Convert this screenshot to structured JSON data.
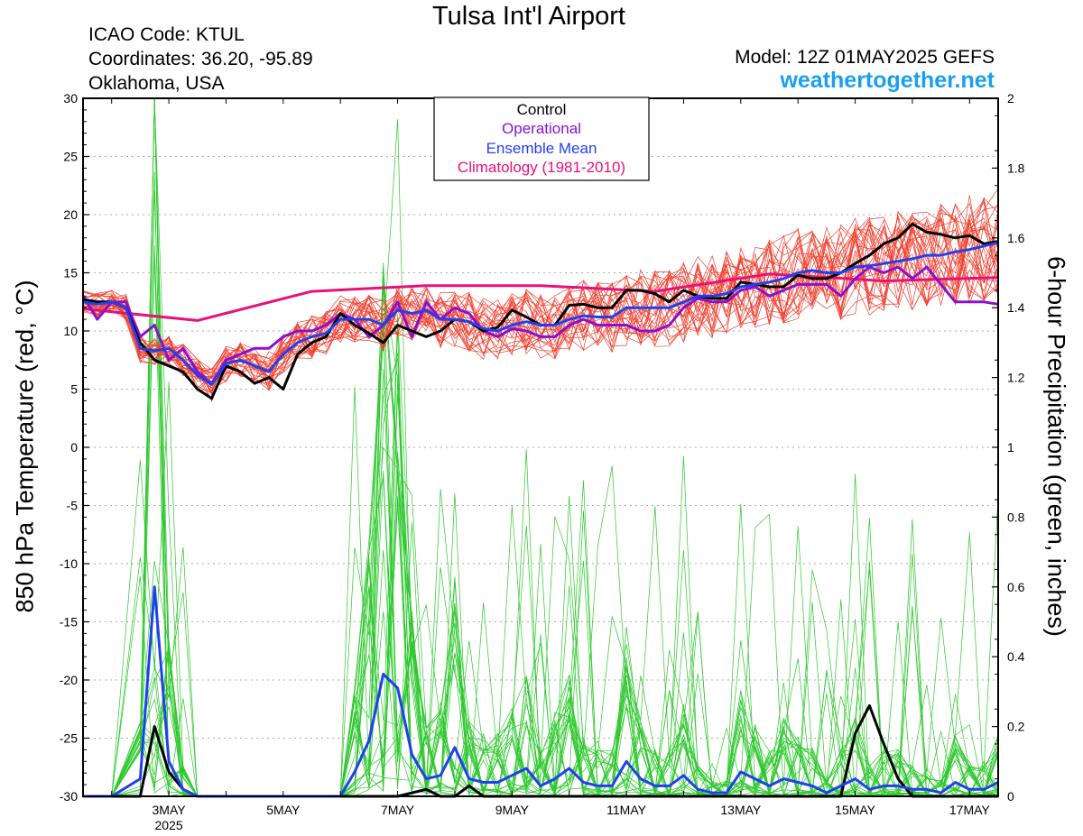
{
  "header": {
    "title": "Tulsa Int'l Airport",
    "icao": "ICAO Code: KTUL",
    "coordinates": "Coordinates: 36.20, -95.89",
    "location": "Oklahoma, USA",
    "model": "Model: 12Z 01MAY2025 GEFS",
    "website": "weathertogether.net"
  },
  "colors": {
    "members_temp": "#f04030",
    "members_precip": "#2ec82e",
    "control": "#000000",
    "operational": "#8a10d0",
    "ensemble_mean": "#2040f0",
    "climatology": "#e8107a",
    "website": "#1a9ff0"
  },
  "chart_data": {
    "type": "line",
    "ylabel": "850 hPa Temperature (red, °C)",
    "y2label": "6-hour Precipitation (green, inches)",
    "ylim": [
      -30,
      30
    ],
    "y2lim": [
      0,
      2
    ],
    "yticks": [
      "30",
      "25",
      "20",
      "15",
      "10",
      "5",
      "0",
      "-5",
      "-10",
      "-15",
      "-20",
      "-25",
      "-30"
    ],
    "y2ticks": [
      "2",
      "1.8",
      "1.6",
      "1.4",
      "1.2",
      "1",
      "0.8",
      "0.6",
      "0.4",
      "0.2",
      "0"
    ],
    "xlim_days": [
      1.5,
      17.5
    ],
    "xticks": [
      {
        "day": 3,
        "label": "3MAY",
        "sublabel": "2025"
      },
      {
        "day": 5,
        "label": "5MAY"
      },
      {
        "day": 7,
        "label": "7MAY"
      },
      {
        "day": 9,
        "label": "9MAY"
      },
      {
        "day": 11,
        "label": "11MAY"
      },
      {
        "day": 13,
        "label": "13MAY"
      },
      {
        "day": 15,
        "label": "15MAY"
      },
      {
        "day": 17,
        "label": "17MAY"
      }
    ],
    "grid": true,
    "legend_position": "top-center",
    "legend": [
      {
        "label": "Control",
        "color": "#000000"
      },
      {
        "label": "Operational",
        "color": "#8a10d0"
      },
      {
        "label": "Ensemble Mean",
        "color": "#2040f0"
      },
      {
        "label": "Climatology (1981-2010)",
        "color": "#e8107a"
      }
    ],
    "series": [
      {
        "name": "Control",
        "kind": "temperature",
        "x": [
          1.5,
          1.75,
          2.0,
          2.25,
          2.5,
          2.75,
          3.0,
          3.25,
          3.5,
          3.75,
          4.0,
          4.25,
          4.5,
          4.75,
          5.0,
          5.25,
          5.5,
          5.75,
          6.0,
          6.25,
          6.5,
          6.75,
          7.0,
          7.25,
          7.5,
          7.75,
          8.0,
          8.25,
          8.5,
          8.75,
          9.0,
          9.25,
          9.5,
          9.75,
          10.0,
          10.25,
          10.5,
          10.75,
          11.0,
          11.25,
          11.5,
          11.75,
          12.0,
          12.25,
          12.5,
          12.75,
          13.0,
          13.25,
          13.5,
          13.75,
          14.0,
          14.25,
          14.5,
          14.75,
          15.0,
          15.25,
          15.5,
          15.75,
          16.0,
          16.25,
          16.5,
          16.75,
          17.0,
          17.25,
          17.5
        ],
        "y": [
          12.7,
          12.5,
          12.5,
          12.0,
          9.0,
          7.5,
          7.0,
          6.5,
          5.0,
          4.2,
          7.0,
          6.5,
          5.5,
          6.0,
          5.0,
          8.0,
          9.0,
          9.5,
          11.5,
          10.5,
          9.8,
          9.0,
          10.5,
          10.0,
          9.5,
          10.0,
          11.0,
          10.8,
          10.0,
          10.3,
          11.8,
          11.2,
          10.5,
          10.5,
          12.2,
          12.3,
          12.0,
          12.0,
          13.5,
          13.5,
          13.2,
          12.5,
          13.5,
          13.0,
          12.8,
          12.8,
          14.2,
          14.0,
          13.8,
          13.8,
          14.8,
          14.5,
          14.5,
          15.0,
          15.8,
          16.5,
          17.5,
          18.0,
          19.2,
          18.5,
          18.3,
          18.0,
          18.2,
          17.5,
          17.7
        ]
      },
      {
        "name": "Operational",
        "kind": "temperature",
        "x": [
          1.5,
          1.75,
          2.0,
          2.25,
          2.5,
          2.75,
          3.0,
          3.25,
          3.5,
          3.75,
          4.0,
          4.25,
          4.5,
          4.75,
          5.0,
          5.25,
          5.5,
          5.75,
          6.0,
          6.25,
          6.5,
          6.75,
          7.0,
          7.25,
          7.5,
          7.75,
          8.0,
          8.25,
          8.5,
          8.75,
          9.0,
          9.25,
          9.5,
          9.75,
          10.0,
          10.25,
          10.5,
          10.75,
          11.0,
          11.25,
          11.5,
          11.75,
          12.0,
          12.25,
          12.5,
          12.75,
          13.0,
          13.25,
          13.5,
          13.75,
          14.0,
          14.25,
          14.5,
          14.75,
          15.0,
          15.25,
          15.5,
          15.75,
          16.0,
          16.25,
          16.5,
          16.75,
          17.0,
          17.25,
          17.5
        ],
        "y": [
          13.0,
          11.0,
          12.5,
          12.5,
          9.5,
          10.5,
          7.5,
          8.5,
          6.5,
          5.5,
          7.5,
          8.0,
          8.5,
          8.5,
          9.5,
          10.0,
          10.0,
          10.5,
          11.5,
          11.0,
          9.5,
          10.5,
          12.5,
          9.5,
          12.5,
          11.0,
          12.0,
          11.5,
          10.0,
          9.5,
          10.2,
          10.0,
          9.5,
          9.5,
          10.5,
          11.0,
          10.5,
          10.5,
          10.5,
          10.0,
          10.0,
          10.5,
          12.0,
          12.8,
          12.5,
          12.5,
          13.5,
          13.8,
          13.0,
          13.5,
          14.0,
          14.0,
          14.0,
          13.0,
          14.5,
          15.5,
          15.0,
          15.5,
          14.5,
          15.5,
          14.0,
          12.5,
          12.5,
          12.5,
          12.3
        ]
      },
      {
        "name": "Ensemble Mean",
        "kind": "temperature",
        "x": [
          1.5,
          1.75,
          2.0,
          2.25,
          2.5,
          2.75,
          3.0,
          3.25,
          3.5,
          3.75,
          4.0,
          4.25,
          4.5,
          4.75,
          5.0,
          5.25,
          5.5,
          5.75,
          6.0,
          6.25,
          6.5,
          6.75,
          7.0,
          7.25,
          7.5,
          7.75,
          8.0,
          8.25,
          8.5,
          8.75,
          9.0,
          9.25,
          9.5,
          9.75,
          10.0,
          10.25,
          10.5,
          10.75,
          11.0,
          11.25,
          11.5,
          11.75,
          12.0,
          12.25,
          12.5,
          12.75,
          13.0,
          13.25,
          13.5,
          13.75,
          14.0,
          14.25,
          14.5,
          14.75,
          15.0,
          15.25,
          15.5,
          15.75,
          16.0,
          16.25,
          16.5,
          16.75,
          17.0,
          17.25,
          17.5
        ],
        "y": [
          12.5,
          12.3,
          12.5,
          12.0,
          8.5,
          8.3,
          8.5,
          7.5,
          6.2,
          5.4,
          7.2,
          7.5,
          7.0,
          6.5,
          8.0,
          9.0,
          9.5,
          9.8,
          11.0,
          11.0,
          11.0,
          10.5,
          11.8,
          11.5,
          11.8,
          11.0,
          11.0,
          10.8,
          10.2,
          10.0,
          10.5,
          10.8,
          10.5,
          10.5,
          11.0,
          11.3,
          11.2,
          11.2,
          12.0,
          12.0,
          12.0,
          12.0,
          12.5,
          13.0,
          13.0,
          13.2,
          13.8,
          14.0,
          14.2,
          14.5,
          15.0,
          15.2,
          15.0,
          15.0,
          15.5,
          15.6,
          15.8,
          16.0,
          16.2,
          16.5,
          16.5,
          16.8,
          17.0,
          17.3,
          17.6
        ]
      },
      {
        "name": "Climatology (1981-2010)",
        "kind": "temperature",
        "x": [
          1.5,
          3.5,
          5.5,
          7.5,
          9.5,
          11.5,
          13.5,
          15.5,
          17.5
        ],
        "y": [
          11.9,
          10.9,
          13.4,
          13.9,
          13.9,
          13.4,
          14.9,
          14.3,
          14.6
        ]
      },
      {
        "name": "Control",
        "kind": "precipitation",
        "x": [
          1.5,
          2.0,
          2.5,
          2.75,
          3.0,
          3.25,
          3.5,
          4.0,
          5.0,
          6.0,
          7.0,
          7.5,
          7.75,
          8.0,
          8.25,
          8.5,
          9.0,
          10.0,
          12.0,
          14.0,
          14.75,
          15.0,
          15.25,
          15.5,
          15.75,
          16.0,
          16.5,
          17.5
        ],
        "y": [
          0.0,
          0.0,
          0.0,
          0.2,
          0.07,
          0.02,
          0.0,
          0.0,
          0.0,
          0.0,
          0.0,
          0.02,
          0.0,
          0.0,
          0.03,
          0.0,
          0.0,
          0.0,
          0.0,
          0.0,
          0.0,
          0.18,
          0.26,
          0.15,
          0.05,
          0.0,
          0.0,
          0.0
        ]
      },
      {
        "name": "Ensemble Mean",
        "kind": "precipitation",
        "x": [
          1.5,
          2.0,
          2.5,
          2.75,
          3.0,
          3.25,
          3.5,
          4.0,
          5.0,
          6.0,
          6.25,
          6.5,
          6.75,
          7.0,
          7.25,
          7.5,
          7.75,
          8.0,
          8.25,
          8.5,
          8.75,
          9.0,
          9.25,
          9.5,
          9.75,
          10.0,
          10.25,
          10.5,
          10.75,
          11.0,
          11.25,
          11.5,
          11.75,
          12.0,
          12.25,
          12.5,
          12.75,
          13.0,
          13.25,
          13.5,
          13.75,
          14.0,
          14.25,
          14.5,
          14.75,
          15.0,
          15.25,
          15.5,
          15.75,
          16.0,
          16.25,
          16.5,
          16.75,
          17.0,
          17.25,
          17.5
        ],
        "y": [
          0.0,
          0.0,
          0.05,
          0.6,
          0.1,
          0.02,
          0.0,
          0.0,
          0.0,
          0.0,
          0.07,
          0.16,
          0.35,
          0.31,
          0.12,
          0.05,
          0.06,
          0.14,
          0.05,
          0.04,
          0.04,
          0.06,
          0.08,
          0.03,
          0.05,
          0.08,
          0.04,
          0.03,
          0.03,
          0.1,
          0.05,
          0.03,
          0.03,
          0.06,
          0.02,
          0.01,
          0.01,
          0.07,
          0.05,
          0.03,
          0.05,
          0.04,
          0.03,
          0.01,
          0.03,
          0.05,
          0.02,
          0.03,
          0.03,
          0.02,
          0.02,
          0.01,
          0.04,
          0.02,
          0.02,
          0.04
        ]
      }
    ]
  }
}
